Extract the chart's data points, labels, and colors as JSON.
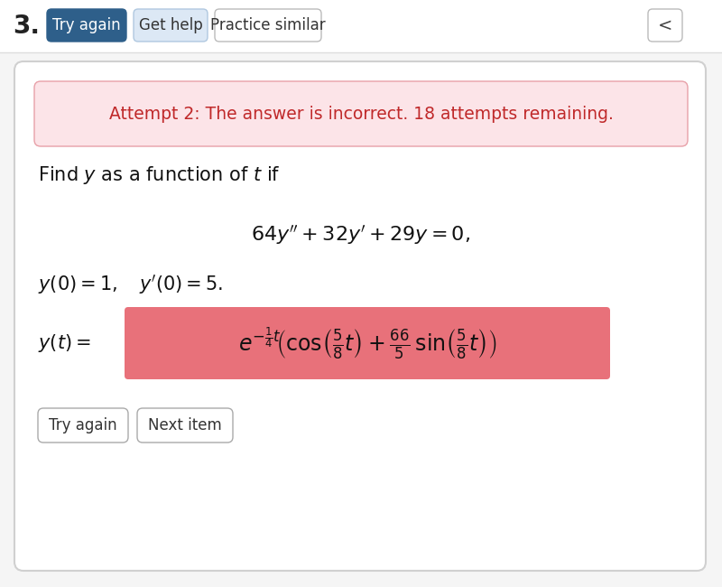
{
  "bg_color": "#f5f5f5",
  "card_bg": "#ffffff",
  "card_edge_color": "#d0d0d0",
  "number_text": "3.",
  "btn1_text": "Try again",
  "btn1_bg": "#2e5f8a",
  "btn1_fg": "#ffffff",
  "btn2_text": "Get help",
  "btn2_bg": "#dce8f5",
  "btn2_fg": "#333333",
  "btn3_text": "Practice similar",
  "btn3_bg": "#ffffff",
  "btn3_fg": "#333333",
  "alert_bg": "#fce4e8",
  "alert_border": "#e8a0a8",
  "alert_text": "Attempt 2: The answer is incorrect. 18 attempts remaining.",
  "alert_text_color": "#c0292a",
  "answer_bg": "#e8717a",
  "yt_label": "$y(t) = $",
  "btn_try_text": "Try again",
  "btn_next_text": "Next item",
  "chevron_text": "<",
  "top_bar_bg": "#ffffff"
}
